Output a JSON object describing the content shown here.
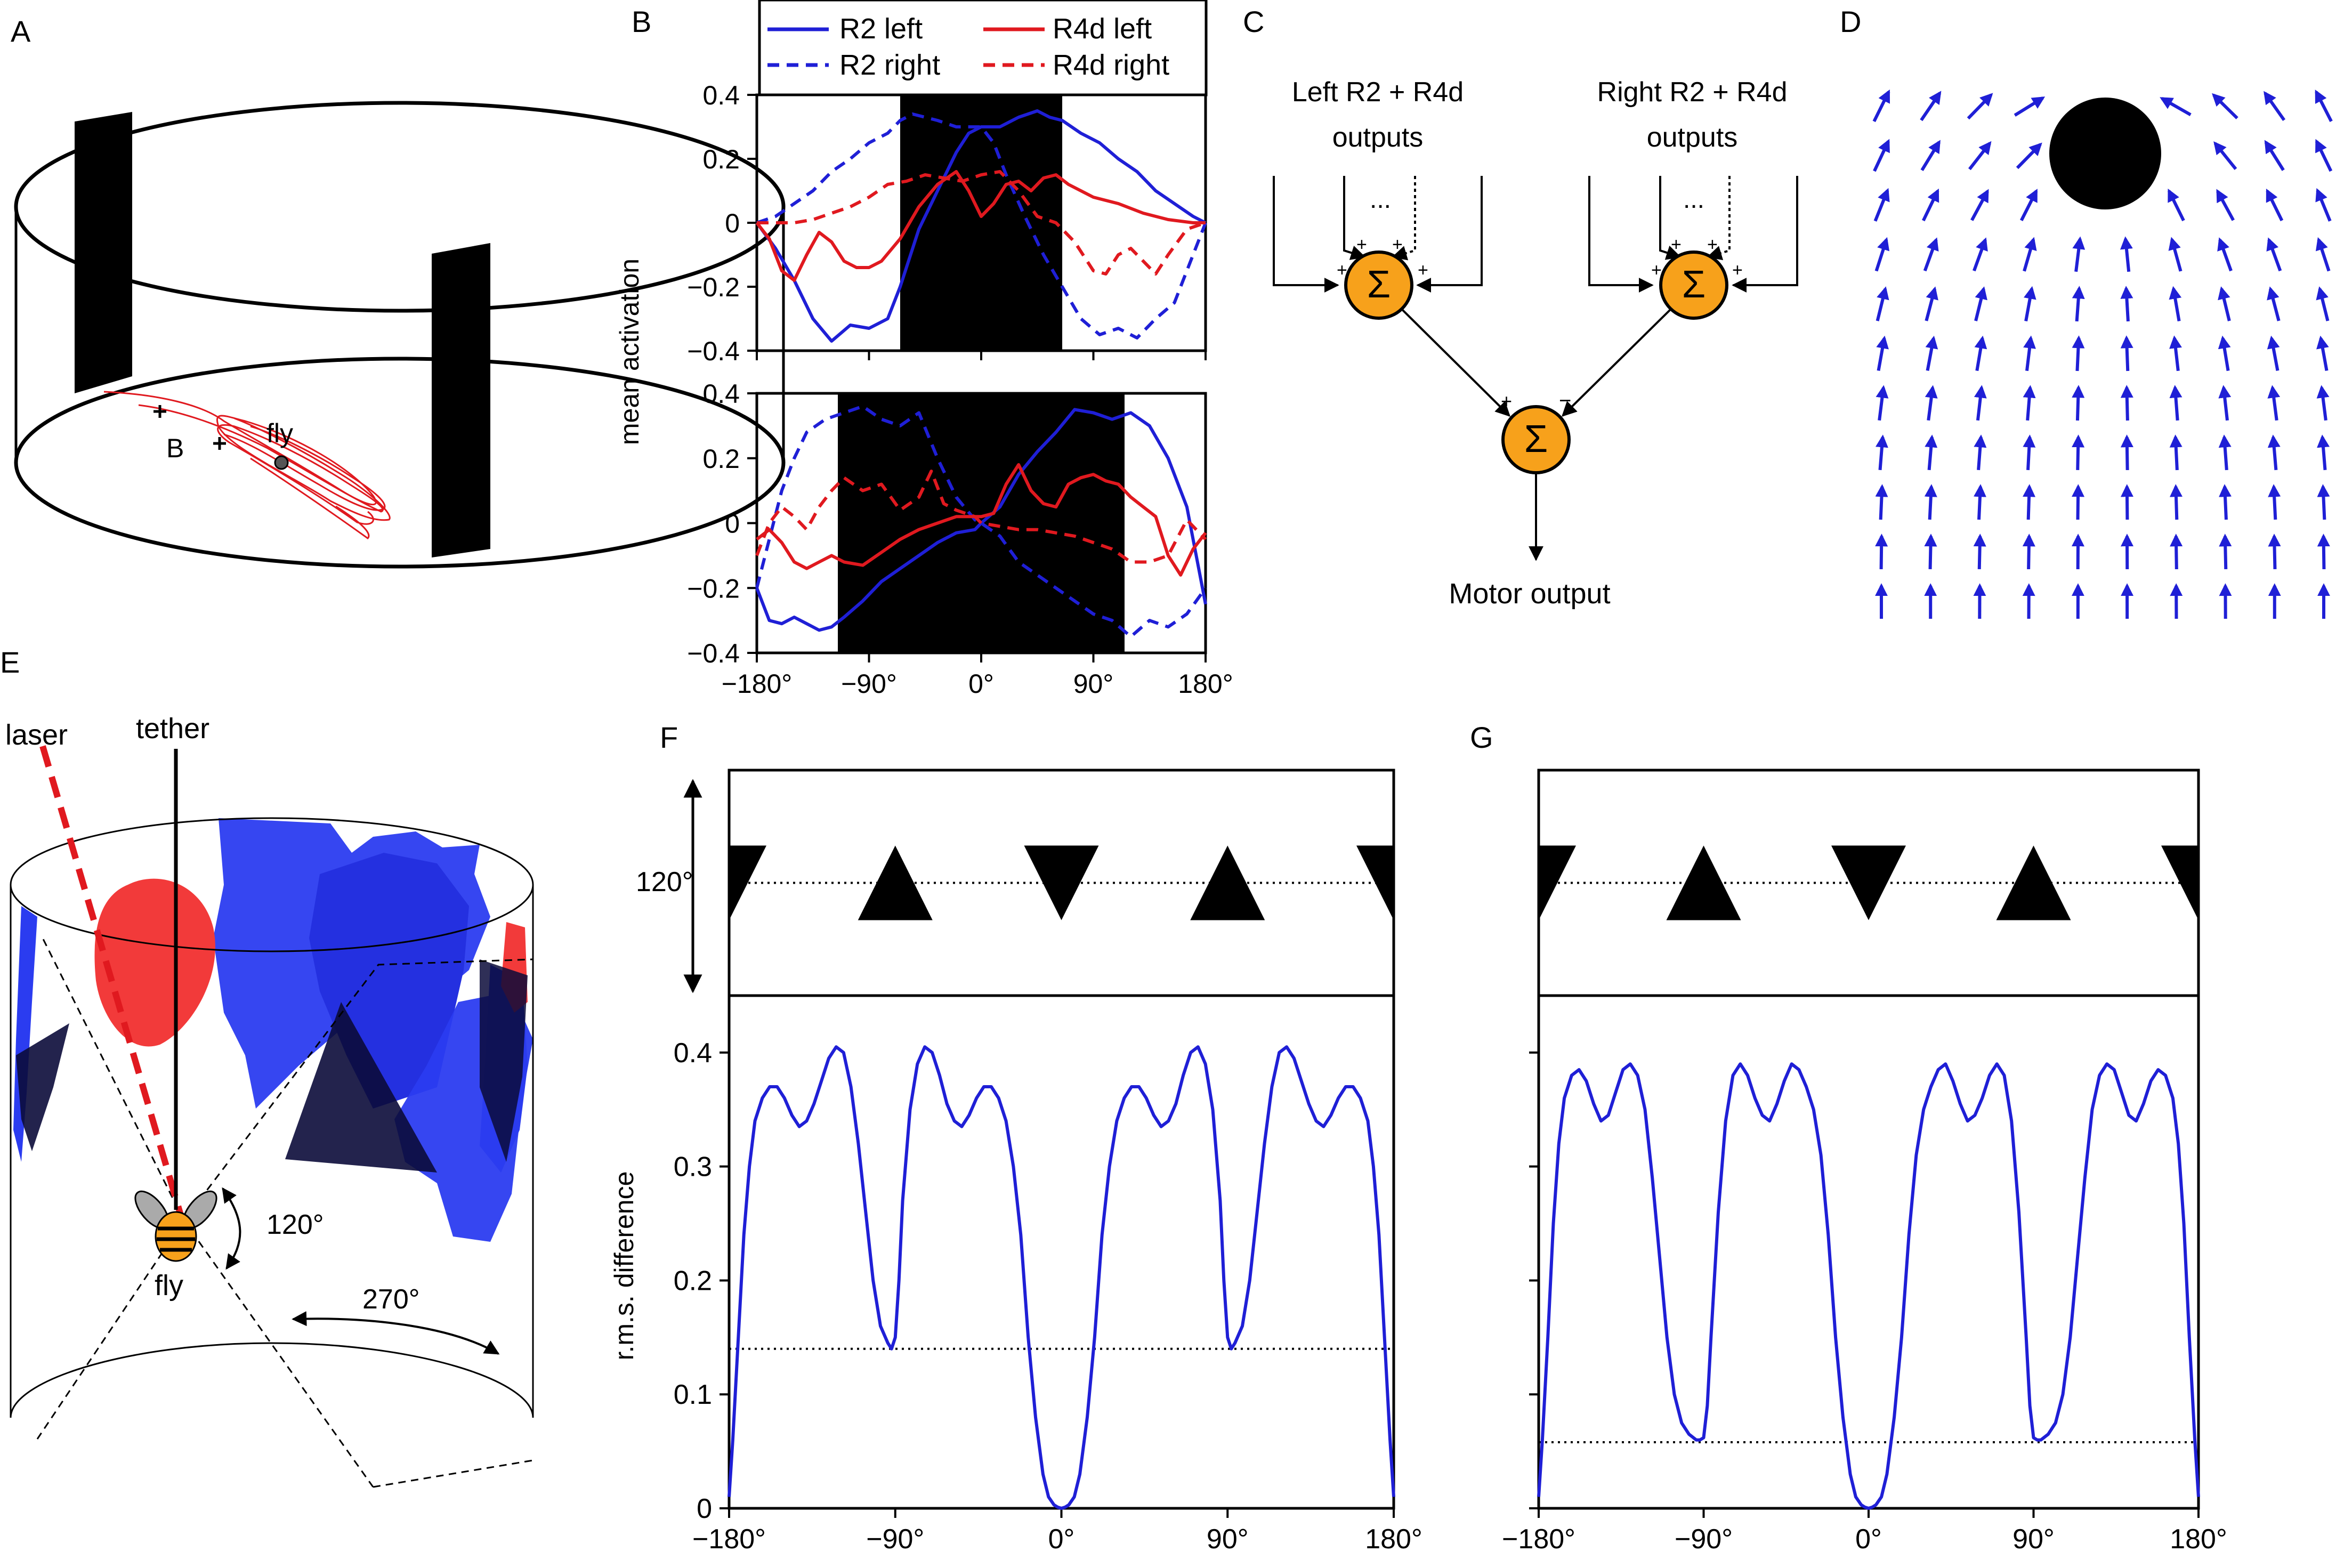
{
  "panels": {
    "A": {
      "letter": "A",
      "labels": {
        "b": "B",
        "fly": "fly"
      }
    },
    "B": {
      "letter": "B"
    },
    "C": {
      "letter": "C",
      "left_label_1": "Left R2 + R4d",
      "left_label_2": "outputs",
      "right_label_1": "Right R2 + R4d",
      "right_label_2": "outputs",
      "ellipsis": "...",
      "sigma": "Σ",
      "plus": "+",
      "minus": "−",
      "motor": "Motor output"
    },
    "D": {
      "letter": "D"
    },
    "E": {
      "letter": "E",
      "laser": "laser",
      "tether": "tether",
      "fly": "fly",
      "angle_small": "120°",
      "angle_large": "270°"
    },
    "F": {
      "letter": "F",
      "pattern_angle": "120°"
    },
    "G": {
      "letter": "G"
    }
  },
  "colors": {
    "blue": "#1f1fd6",
    "red": "#e0191f",
    "orange": "#f7a11b",
    "patch_blue": "#2b3cf0",
    "patch_red": "#f23a3a"
  },
  "chart_data": [
    {
      "id": "B-top",
      "type": "line",
      "ylabel": "mean activation",
      "ylim": [
        -0.4,
        0.4
      ],
      "xlim": [
        -180,
        180
      ],
      "y_ticks": [
        "−0.4",
        "−0.2",
        "0",
        "0.2",
        "0.4"
      ],
      "bar_region": [
        -65,
        65
      ],
      "legend": {
        "placement": "top",
        "entries": [
          "R2 left",
          "R2 right",
          "R4d left",
          "R4d right"
        ]
      },
      "series": [
        {
          "name": "R2 left",
          "style": "solid",
          "color": "#1f1fd6",
          "x": [
            -180,
            -165,
            -150,
            -135,
            -120,
            -105,
            -90,
            -75,
            -65,
            -50,
            -35,
            -20,
            -10,
            0,
            15,
            30,
            45,
            55,
            65,
            80,
            95,
            110,
            125,
            140,
            155,
            170,
            180
          ],
          "y": [
            0,
            -0.08,
            -0.18,
            -0.3,
            -0.37,
            -0.32,
            -0.33,
            -0.3,
            -0.2,
            -0.02,
            0.1,
            0.22,
            0.28,
            0.3,
            0.3,
            0.33,
            0.35,
            0.33,
            0.32,
            0.28,
            0.25,
            0.2,
            0.16,
            0.1,
            0.06,
            0.02,
            0
          ]
        },
        {
          "name": "R2 right",
          "style": "dashed",
          "color": "#1f1fd6",
          "x": [
            -180,
            -165,
            -150,
            -135,
            -120,
            -105,
            -90,
            -75,
            -65,
            -55,
            -45,
            -35,
            -20,
            -10,
            0,
            10,
            20,
            35,
            50,
            65,
            80,
            95,
            110,
            125,
            140,
            155,
            170,
            180
          ],
          "y": [
            0,
            0.02,
            0.06,
            0.1,
            0.16,
            0.2,
            0.25,
            0.28,
            0.32,
            0.34,
            0.33,
            0.32,
            0.3,
            0.3,
            0.3,
            0.25,
            0.15,
            0.02,
            -0.1,
            -0.2,
            -0.3,
            -0.35,
            -0.33,
            -0.36,
            -0.3,
            -0.25,
            -0.1,
            0
          ]
        },
        {
          "name": "R4d left",
          "style": "solid",
          "color": "#e0191f",
          "x": [
            -180,
            -170,
            -160,
            -150,
            -140,
            -130,
            -120,
            -110,
            -100,
            -90,
            -80,
            -65,
            -50,
            -35,
            -20,
            -10,
            0,
            10,
            20,
            30,
            40,
            50,
            60,
            70,
            90,
            110,
            130,
            150,
            170,
            180
          ],
          "y": [
            0,
            -0.05,
            -0.15,
            -0.18,
            -0.1,
            -0.03,
            -0.06,
            -0.12,
            -0.14,
            -0.14,
            -0.12,
            -0.05,
            0.05,
            0.12,
            0.16,
            0.1,
            0.02,
            0.06,
            0.12,
            0.13,
            0.1,
            0.14,
            0.15,
            0.12,
            0.08,
            0.06,
            0.03,
            0.01,
            0.0,
            0
          ]
        },
        {
          "name": "R4d right",
          "style": "dashed",
          "color": "#e0191f",
          "x": [
            -180,
            -165,
            -150,
            -135,
            -120,
            -105,
            -90,
            -75,
            -60,
            -45,
            -30,
            -15,
            0,
            15,
            30,
            45,
            60,
            75,
            90,
            100,
            110,
            120,
            130,
            140,
            150,
            165,
            180
          ],
          "y": [
            0,
            0,
            0,
            0.01,
            0.03,
            0.05,
            0.08,
            0.12,
            0.13,
            0.15,
            0.14,
            0.13,
            0.15,
            0.16,
            0.1,
            0.02,
            0,
            -0.06,
            -0.15,
            -0.16,
            -0.1,
            -0.08,
            -0.12,
            -0.16,
            -0.1,
            -0.02,
            0
          ]
        }
      ]
    },
    {
      "id": "B-bottom",
      "type": "line",
      "ylim": [
        -0.4,
        0.4
      ],
      "xlim": [
        -180,
        180
      ],
      "y_ticks": [
        "−0.4",
        "−0.2",
        "0",
        "0.2",
        "0.4"
      ],
      "x_ticks": [
        "−180°",
        "−90°",
        "0°",
        "90°",
        "180°"
      ],
      "bar_region": [
        -115,
        115
      ],
      "series": [
        {
          "name": "R2 left",
          "style": "solid",
          "color": "#1f1fd6",
          "x": [
            -180,
            -170,
            -160,
            -150,
            -140,
            -130,
            -120,
            -110,
            -95,
            -80,
            -65,
            -50,
            -35,
            -20,
            -5,
            0,
            15,
            30,
            45,
            60,
            75,
            90,
            105,
            120,
            135,
            150,
            165,
            180
          ],
          "y": [
            -0.2,
            -0.3,
            -0.31,
            -0.29,
            -0.31,
            -0.33,
            -0.32,
            -0.29,
            -0.24,
            -0.18,
            -0.14,
            -0.1,
            -0.06,
            -0.03,
            -0.02,
            0,
            0.05,
            0.15,
            0.22,
            0.28,
            0.35,
            0.34,
            0.32,
            0.34,
            0.3,
            0.2,
            0.05,
            -0.25
          ]
        },
        {
          "name": "R2 right",
          "style": "dashed",
          "color": "#1f1fd6",
          "x": [
            -180,
            -170,
            -160,
            -150,
            -140,
            -125,
            -110,
            -95,
            -80,
            -65,
            -50,
            -35,
            -20,
            -5,
            0,
            15,
            30,
            45,
            60,
            75,
            90,
            105,
            120,
            135,
            150,
            165,
            180
          ],
          "y": [
            -0.2,
            -0.05,
            0.1,
            0.2,
            0.28,
            0.32,
            0.34,
            0.36,
            0.32,
            0.3,
            0.34,
            0.2,
            0.08,
            0.01,
            0,
            -0.04,
            -0.12,
            -0.16,
            -0.2,
            -0.24,
            -0.28,
            -0.3,
            -0.35,
            -0.3,
            -0.32,
            -0.28,
            -0.2
          ]
        },
        {
          "name": "R4d left",
          "style": "solid",
          "color": "#e0191f",
          "x": [
            -180,
            -170,
            -160,
            -150,
            -140,
            -130,
            -120,
            -110,
            -95,
            -80,
            -65,
            -50,
            -35,
            -20,
            -5,
            0,
            10,
            20,
            30,
            40,
            50,
            60,
            70,
            80,
            90,
            100,
            110,
            120,
            130,
            140,
            150,
            160,
            170,
            180
          ],
          "y": [
            -0.05,
            -0.02,
            -0.06,
            -0.12,
            -0.14,
            -0.12,
            -0.1,
            -0.12,
            -0.13,
            -0.09,
            -0.05,
            -0.02,
            0,
            0.02,
            0.02,
            0.02,
            0.03,
            0.12,
            0.18,
            0.1,
            0.06,
            0.05,
            0.12,
            0.14,
            0.15,
            0.13,
            0.12,
            0.08,
            0.05,
            0.02,
            -0.1,
            -0.16,
            -0.08,
            -0.03
          ]
        },
        {
          "name": "R4d right",
          "style": "dashed",
          "color": "#e0191f",
          "x": [
            -180,
            -170,
            -160,
            -150,
            -140,
            -130,
            -120,
            -110,
            -95,
            -80,
            -65,
            -50,
            -40,
            -30,
            -20,
            -5,
            0,
            15,
            30,
            45,
            60,
            75,
            90,
            105,
            120,
            135,
            150,
            165,
            180
          ],
          "y": [
            -0.1,
            0,
            0.05,
            0.02,
            -0.02,
            0.05,
            0.1,
            0.14,
            0.1,
            0.12,
            0.04,
            0.08,
            0.16,
            0.06,
            0.04,
            0.02,
            0,
            -0.01,
            -0.02,
            -0.02,
            -0.03,
            -0.04,
            -0.06,
            -0.08,
            -0.12,
            -0.12,
            -0.1,
            0.01,
            -0.05
          ]
        }
      ]
    },
    {
      "id": "F",
      "type": "line",
      "ylabel": "r.m.s. difference",
      "ylim": [
        0,
        0.45
      ],
      "xlim": [
        -180,
        180
      ],
      "y_ticks": [
        "0",
        "0.1",
        "0.2",
        "0.3",
        "0.4"
      ],
      "x_ticks": [
        "−180°",
        "−90°",
        "0°",
        "90°",
        "180°"
      ],
      "baseline": 0.14,
      "pattern": {
        "upright_triangle_centers": [
          -90,
          90
        ],
        "inverted_triangle_centers": [
          -180,
          0,
          180
        ],
        "level_deg": 120
      },
      "series": [
        {
          "name": "",
          "style": "solid",
          "color": "#1f1fd6",
          "x": [
            -180,
            -178,
            -175,
            -172,
            -169,
            -166,
            -162,
            -158,
            -154,
            -150,
            -146,
            -142,
            -138,
            -134,
            -130,
            -126,
            -122,
            -118,
            -114,
            -110,
            -106,
            -102,
            -98,
            -94,
            -92,
            -90,
            -88,
            -86,
            -82,
            -78,
            -74,
            -70,
            -66,
            -62,
            -58,
            -54,
            -50,
            -46,
            -42,
            -38,
            -34,
            -30,
            -26,
            -22,
            -18,
            -14,
            -10,
            -7,
            -4,
            -2,
            0,
            2,
            4,
            7,
            10,
            14,
            18,
            22,
            26,
            30,
            34,
            38,
            42,
            46,
            50,
            54,
            58,
            62,
            66,
            70,
            74,
            78,
            82,
            86,
            88,
            90,
            92,
            94,
            98,
            102,
            106,
            110,
            114,
            118,
            122,
            126,
            130,
            134,
            138,
            142,
            146,
            150,
            154,
            158,
            162,
            166,
            169,
            172,
            175,
            178,
            180
          ],
          "y": [
            0.01,
            0.06,
            0.15,
            0.24,
            0.3,
            0.34,
            0.36,
            0.37,
            0.37,
            0.36,
            0.345,
            0.335,
            0.34,
            0.355,
            0.375,
            0.395,
            0.405,
            0.4,
            0.37,
            0.32,
            0.26,
            0.2,
            0.16,
            0.145,
            0.14,
            0.15,
            0.2,
            0.27,
            0.35,
            0.39,
            0.405,
            0.4,
            0.38,
            0.355,
            0.34,
            0.335,
            0.345,
            0.36,
            0.37,
            0.37,
            0.36,
            0.34,
            0.3,
            0.24,
            0.15,
            0.08,
            0.03,
            0.01,
            0.003,
            0.001,
            0.0,
            0.001,
            0.003,
            0.01,
            0.03,
            0.08,
            0.15,
            0.24,
            0.3,
            0.34,
            0.36,
            0.37,
            0.37,
            0.36,
            0.345,
            0.335,
            0.34,
            0.355,
            0.38,
            0.4,
            0.405,
            0.39,
            0.35,
            0.27,
            0.2,
            0.15,
            0.14,
            0.145,
            0.16,
            0.2,
            0.26,
            0.32,
            0.37,
            0.4,
            0.405,
            0.395,
            0.375,
            0.355,
            0.34,
            0.335,
            0.345,
            0.36,
            0.37,
            0.37,
            0.36,
            0.34,
            0.3,
            0.24,
            0.15,
            0.06,
            0.01
          ]
        }
      ]
    },
    {
      "id": "G",
      "type": "line",
      "ylim": [
        0,
        0.45
      ],
      "xlim": [
        -180,
        180
      ],
      "x_ticks": [
        "−180°",
        "−90°",
        "0°",
        "90°",
        "180°"
      ],
      "baseline": 0.058,
      "pattern": {
        "upright_triangle_centers": [
          -90,
          90
        ],
        "inverted_triangle_centers": [
          -180,
          0,
          180
        ]
      },
      "series": [
        {
          "name": "",
          "style": "solid",
          "color": "#1f1fd6",
          "x": [
            -180,
            -178,
            -175,
            -172,
            -169,
            -166,
            -162,
            -158,
            -154,
            -150,
            -146,
            -142,
            -138,
            -134,
            -130,
            -126,
            -122,
            -118,
            -114,
            -110,
            -106,
            -102,
            -98,
            -94,
            -92,
            -90,
            -88,
            -86,
            -82,
            -78,
            -74,
            -70,
            -66,
            -62,
            -58,
            -54,
            -50,
            -46,
            -42,
            -38,
            -34,
            -30,
            -26,
            -22,
            -18,
            -14,
            -10,
            -7,
            -4,
            -2,
            0,
            2,
            4,
            7,
            10,
            14,
            18,
            22,
            26,
            30,
            34,
            38,
            42,
            46,
            50,
            54,
            58,
            62,
            66,
            70,
            74,
            78,
            82,
            86,
            88,
            90,
            92,
            94,
            98,
            102,
            106,
            110,
            114,
            118,
            122,
            126,
            130,
            134,
            138,
            142,
            146,
            150,
            154,
            158,
            162,
            166,
            169,
            172,
            175,
            178,
            180
          ],
          "y": [
            0.01,
            0.06,
            0.15,
            0.25,
            0.32,
            0.36,
            0.38,
            0.385,
            0.375,
            0.355,
            0.34,
            0.345,
            0.365,
            0.385,
            0.39,
            0.38,
            0.35,
            0.29,
            0.22,
            0.15,
            0.1,
            0.075,
            0.065,
            0.06,
            0.06,
            0.062,
            0.09,
            0.15,
            0.26,
            0.34,
            0.38,
            0.39,
            0.38,
            0.36,
            0.345,
            0.34,
            0.355,
            0.375,
            0.39,
            0.385,
            0.37,
            0.35,
            0.31,
            0.24,
            0.15,
            0.08,
            0.03,
            0.01,
            0.003,
            0.001,
            0.0,
            0.001,
            0.003,
            0.01,
            0.03,
            0.08,
            0.15,
            0.24,
            0.31,
            0.35,
            0.37,
            0.385,
            0.39,
            0.375,
            0.355,
            0.34,
            0.345,
            0.36,
            0.38,
            0.39,
            0.38,
            0.34,
            0.26,
            0.15,
            0.09,
            0.062,
            0.06,
            0.06,
            0.065,
            0.075,
            0.1,
            0.15,
            0.22,
            0.29,
            0.35,
            0.38,
            0.39,
            0.385,
            0.365,
            0.345,
            0.34,
            0.355,
            0.375,
            0.385,
            0.38,
            0.36,
            0.32,
            0.25,
            0.15,
            0.06,
            0.01
          ]
        }
      ]
    }
  ]
}
